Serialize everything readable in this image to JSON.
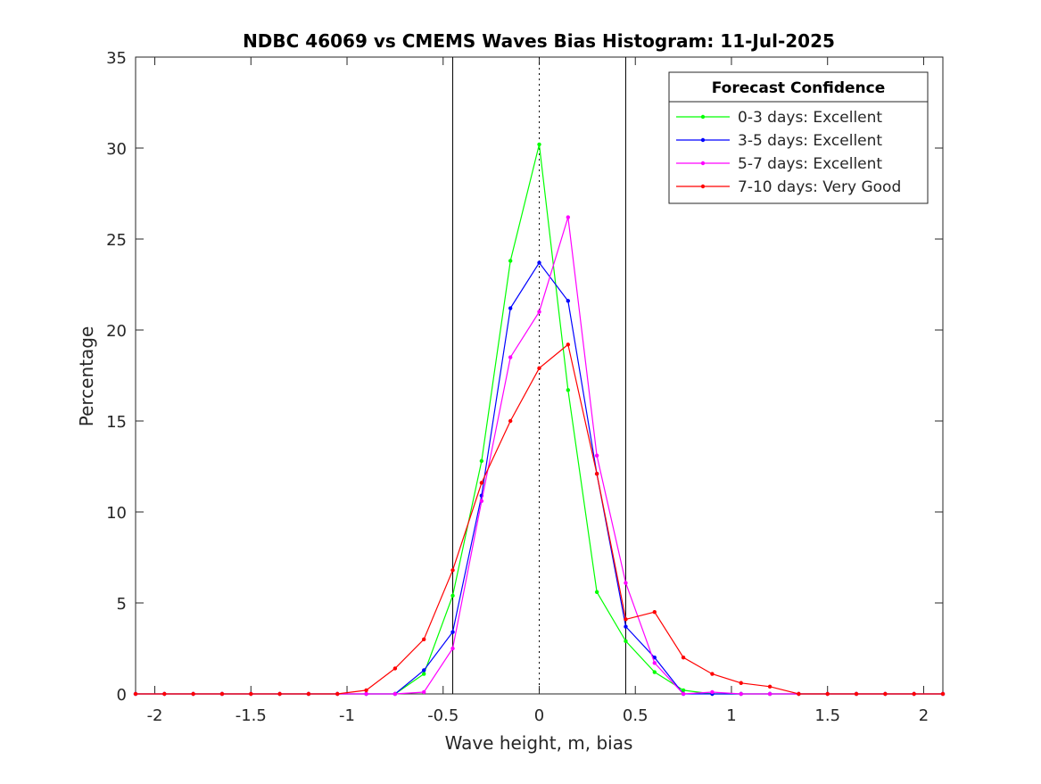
{
  "chart_data": {
    "type": "line",
    "title": "NDBC 46069 vs CMEMS Waves Bias Histogram: 11-Jul-2025",
    "xlabel": "Wave height, m, bias",
    "ylabel": "Percentage",
    "xlim": [
      -2.1,
      2.1
    ],
    "ylim": [
      0,
      35
    ],
    "xticks": [
      -2,
      -1.5,
      -1,
      -0.5,
      0,
      0.5,
      1,
      1.5,
      2
    ],
    "xtick_labels": [
      "-2",
      "-1.5",
      "-1",
      "-0.5",
      "0",
      "0.5",
      "1",
      "1.5",
      "2"
    ],
    "yticks": [
      0,
      5,
      10,
      15,
      20,
      25,
      30,
      35
    ],
    "ytick_labels": [
      "0",
      "5",
      "10",
      "15",
      "20",
      "25",
      "30",
      "35"
    ],
    "vlines_solid": [
      -0.45,
      0.45
    ],
    "vline_dotted": 0,
    "grid": false,
    "legend": {
      "title": "Forecast Confidence",
      "position": "top-right"
    },
    "x": [
      -2.1,
      -1.95,
      -1.8,
      -1.65,
      -1.5,
      -1.35,
      -1.2,
      -1.05,
      -0.9,
      -0.75,
      -0.6,
      -0.45,
      -0.3,
      -0.15,
      0,
      0.15,
      0.3,
      0.45,
      0.6,
      0.75,
      0.9,
      1.05,
      1.2,
      1.35,
      1.5,
      1.65,
      1.8,
      1.95,
      2.1
    ],
    "series": [
      {
        "name": "0-3 days: Excellent",
        "color": "#00ff00",
        "values": [
          0,
          0,
          0,
          0,
          0,
          0,
          0,
          0,
          0,
          0,
          1.1,
          5.4,
          12.8,
          23.8,
          30.2,
          16.7,
          5.6,
          2.9,
          1.2,
          0.2,
          0,
          0,
          0,
          0,
          0,
          0,
          0,
          0,
          0
        ]
      },
      {
        "name": "3-5 days: Excellent",
        "color": "#0000ff",
        "values": [
          0,
          0,
          0,
          0,
          0,
          0,
          0,
          0,
          0,
          0,
          1.3,
          3.4,
          10.9,
          21.2,
          23.7,
          21.6,
          12.1,
          3.7,
          2.0,
          0,
          0,
          0,
          0,
          0,
          0,
          0,
          0,
          0,
          0
        ]
      },
      {
        "name": "5-7 days: Excellent",
        "color": "#ff00ff",
        "values": [
          0,
          0,
          0,
          0,
          0,
          0,
          0,
          0,
          0,
          0,
          0.1,
          2.5,
          10.6,
          18.5,
          21.0,
          26.2,
          13.1,
          6.1,
          1.7,
          0,
          0.1,
          0,
          0,
          0,
          0,
          0,
          0,
          0,
          0
        ]
      },
      {
        "name": "7-10 days: Very Good",
        "color": "#ff0000",
        "values": [
          0,
          0,
          0,
          0,
          0,
          0,
          0,
          0,
          0.2,
          1.4,
          3.0,
          6.8,
          11.6,
          15.0,
          17.9,
          19.2,
          12.1,
          4.1,
          4.5,
          2.0,
          1.1,
          0.6,
          0.4,
          0,
          0,
          0,
          0,
          0,
          0
        ]
      }
    ]
  }
}
